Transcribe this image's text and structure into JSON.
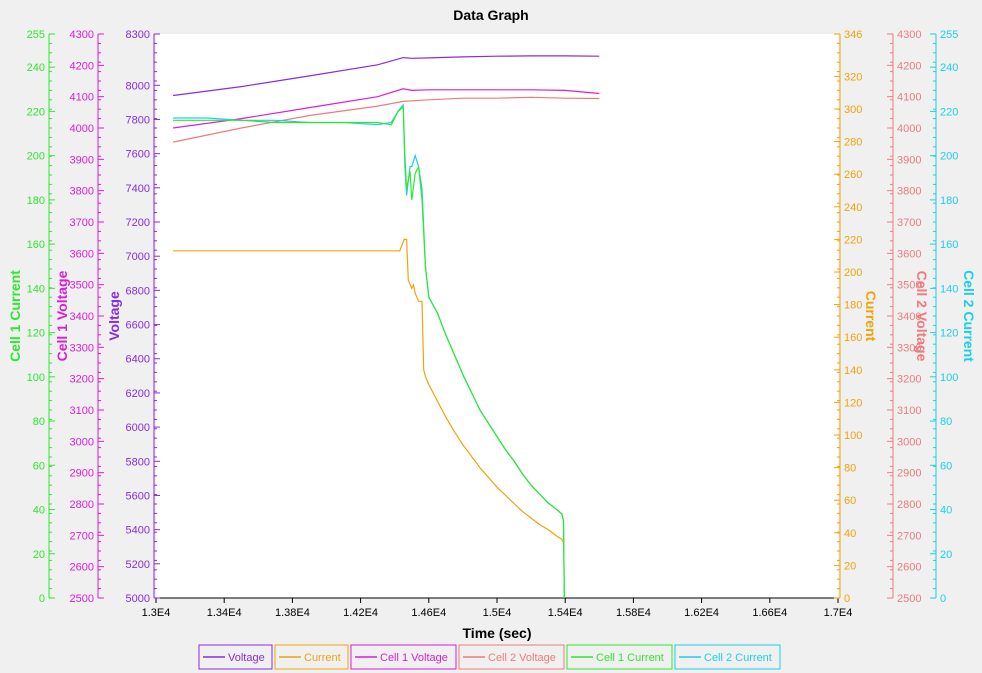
{
  "chart_data": {
    "type": "line",
    "title": "Data Graph",
    "x_axis": {
      "label": "Time (sec)",
      "range": [
        13000,
        17000
      ],
      "ticks": [
        13000,
        13400,
        13800,
        14200,
        14600,
        15000,
        15400,
        15800,
        16200,
        16600,
        17000
      ],
      "tick_labels": [
        "1.3E4",
        "1.34E4",
        "1.38E4",
        "1.42E4",
        "1.46E4",
        "1.5E4",
        "1.54E4",
        "1.58E4",
        "1.62E4",
        "1.66E4",
        "1.7E4"
      ]
    },
    "y_axes": [
      {
        "id": "cell1current",
        "label": "Cell 1 Current",
        "side": "left",
        "range": [
          0,
          255
        ],
        "ticks": [
          0,
          20,
          40,
          60,
          80,
          100,
          120,
          140,
          160,
          180,
          200,
          220,
          240,
          255
        ],
        "color": "#2ee82e"
      },
      {
        "id": "cell1voltage",
        "label": "Cell 1 Voltage",
        "side": "left",
        "range": [
          2500,
          4300
        ],
        "ticks": [
          2500,
          2600,
          2700,
          2800,
          2900,
          3000,
          3100,
          3200,
          3300,
          3400,
          3500,
          3600,
          3700,
          3800,
          3900,
          4000,
          4100,
          4200,
          4300
        ],
        "color": "#d81ed8"
      },
      {
        "id": "voltage",
        "label": "Voltage",
        "side": "left",
        "range": [
          5000,
          8300
        ],
        "ticks": [
          5000,
          5200,
          5400,
          5600,
          5800,
          6000,
          6200,
          6400,
          6600,
          6800,
          7000,
          7200,
          7400,
          7600,
          7800,
          8000,
          8300
        ],
        "color": "#8a2be2"
      },
      {
        "id": "current",
        "label": "Current",
        "side": "right",
        "range": [
          0,
          346
        ],
        "ticks": [
          0,
          20,
          40,
          60,
          80,
          100,
          120,
          140,
          160,
          180,
          200,
          220,
          240,
          260,
          280,
          300,
          320,
          346
        ],
        "color": "#f0a30a"
      },
      {
        "id": "cell2voltage",
        "label": "Cell 2 Voltage",
        "side": "right",
        "range": [
          2500,
          4300
        ],
        "ticks": [
          2500,
          2600,
          2700,
          2800,
          2900,
          3000,
          3100,
          3200,
          3300,
          3400,
          3500,
          3600,
          3700,
          3800,
          3900,
          4000,
          4100,
          4200,
          4300
        ],
        "color": "#ee7b7b"
      },
      {
        "id": "cell2current",
        "label": "Cell 2 Current",
        "side": "right",
        "range": [
          0,
          255
        ],
        "ticks": [
          0,
          20,
          40,
          60,
          80,
          100,
          120,
          140,
          160,
          180,
          200,
          220,
          240,
          255
        ],
        "color": "#1ad0e8"
      }
    ],
    "series": [
      {
        "name": "Voltage",
        "axis": "voltage",
        "color": "#8a2be2",
        "x": [
          13100,
          13500,
          13900,
          14300,
          14450,
          14500,
          14600,
          14800,
          15000,
          15200,
          15400,
          15600
        ],
        "y": [
          7940,
          7992,
          8055,
          8120,
          8162,
          8158,
          8160,
          8166,
          8170,
          8172,
          8172,
          8170
        ]
      },
      {
        "name": "Current",
        "axis": "current",
        "color": "#f0a30a",
        "x": [
          13100,
          13300,
          13600,
          13900,
          14200,
          14380,
          14430,
          14455,
          14470,
          14480,
          14500,
          14510,
          14520,
          14540,
          14560,
          14570,
          14580,
          14600,
          14650,
          14700,
          14750,
          14800,
          14850,
          14900,
          14950,
          15000,
          15050,
          15100,
          15150,
          15200,
          15250,
          15300,
          15350,
          15380,
          15390
        ],
        "y": [
          213,
          213,
          213,
          213,
          213,
          213,
          213,
          220,
          220,
          195,
          190,
          192,
          187,
          182,
          182,
          140,
          136,
          131,
          121,
          111,
          102,
          94,
          87,
          80,
          74,
          68,
          63,
          58,
          53,
          49,
          45,
          42,
          38,
          36,
          34
        ]
      },
      {
        "name": "Cell 1 Voltage",
        "axis": "cell1voltage",
        "color": "#d81ed8",
        "x": [
          13100,
          13500,
          13900,
          14300,
          14450,
          14500,
          14600,
          14800,
          15000,
          15200,
          15400,
          15600
        ],
        "y": [
          4000,
          4030,
          4065,
          4100,
          4125,
          4120,
          4122,
          4122,
          4122,
          4122,
          4120,
          4110
        ]
      },
      {
        "name": "Cell 2 Voltage",
        "axis": "cell2voltage",
        "color": "#ee7b7b",
        "x": [
          13100,
          13500,
          13900,
          14300,
          14450,
          14600,
          14800,
          15000,
          15200,
          15400,
          15600
        ],
        "y": [
          3955,
          4000,
          4040,
          4070,
          4085,
          4090,
          4095,
          4095,
          4098,
          4095,
          4094
        ]
      },
      {
        "name": "Cell 1 Current",
        "axis": "cell1current",
        "color": "#2ee82e",
        "x": [
          13100,
          13300,
          13500,
          13700,
          13900,
          14100,
          14300,
          14380,
          14420,
          14450,
          14460,
          14470,
          14490,
          14500,
          14520,
          14540,
          14560,
          14580,
          14600,
          14650,
          14700,
          14750,
          14800,
          14850,
          14900,
          14950,
          15000,
          15050,
          15100,
          15150,
          15200,
          15250,
          15300,
          15350,
          15380,
          15390,
          15395
        ],
        "y": [
          216,
          216,
          216,
          215,
          215,
          215,
          215,
          214,
          220,
          222,
          200,
          185,
          193,
          180,
          192,
          195,
          180,
          150,
          136,
          129,
          119,
          110,
          101,
          93,
          85,
          79,
          73,
          67,
          62,
          56,
          51,
          47,
          43,
          40,
          38,
          35,
          0
        ]
      },
      {
        "name": "Cell 2 Current",
        "axis": "cell2current",
        "color": "#1ad0e8",
        "x": [
          13100,
          13300,
          13500,
          13700,
          13900,
          14100,
          14300,
          14380,
          14420,
          14450,
          14460,
          14470,
          14490,
          14500,
          14520,
          14540,
          14560,
          14580,
          14600,
          14650,
          14700,
          14750,
          14800,
          14850,
          14900,
          14950,
          15000,
          15050,
          15100,
          15150,
          15200,
          15250,
          15300,
          15350,
          15380,
          15390,
          15395
        ],
        "y": [
          217,
          217,
          216,
          216,
          215,
          215,
          214,
          215,
          220,
          223,
          195,
          182,
          195,
          195,
          200,
          195,
          185,
          150,
          136,
          129,
          119,
          110,
          101,
          93,
          85,
          79,
          73,
          67,
          62,
          56,
          51,
          47,
          43,
          40,
          38,
          35,
          0
        ]
      }
    ],
    "legend": {
      "position": "bottom",
      "entries": [
        "Voltage",
        "Current",
        "Cell 1 Voltage",
        "Cell 2 Voltage",
        "Cell 1 Current",
        "Cell 2 Current"
      ]
    },
    "grid": false
  }
}
